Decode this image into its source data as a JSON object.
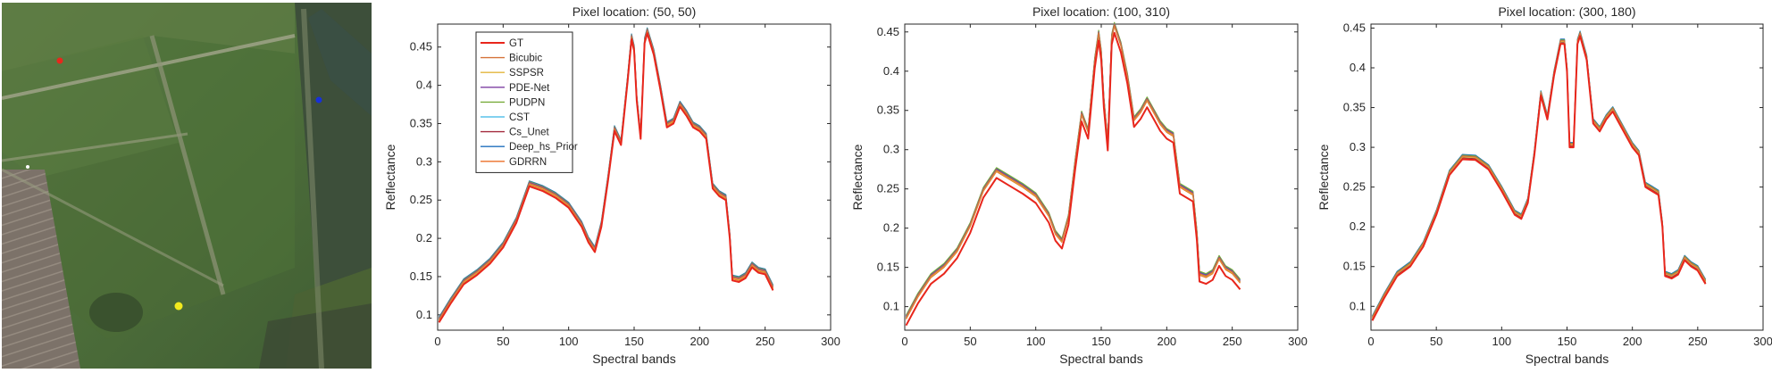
{
  "scene": {
    "markers": [
      {
        "name": "marker-red",
        "color": "#e8271c"
      },
      {
        "name": "marker-blue",
        "color": "#1730d8"
      },
      {
        "name": "marker-yellow",
        "color": "#f2ea1e"
      },
      {
        "name": "marker-white",
        "color": "#ffffff"
      }
    ]
  },
  "chart_data": [
    {
      "type": "line",
      "title": "Pixel location: (50, 50)",
      "xlabel": "Spectral bands",
      "ylabel": "Reflectance",
      "xlim": [
        0,
        300
      ],
      "ylim": [
        0.08,
        0.48
      ],
      "xticks": [
        0,
        50,
        100,
        150,
        200,
        250,
        300
      ],
      "yticks": [
        0.1,
        0.15,
        0.2,
        0.25,
        0.3,
        0.35,
        0.4,
        0.45
      ],
      "x": [
        1,
        10,
        20,
        30,
        40,
        50,
        60,
        70,
        80,
        90,
        100,
        110,
        115,
        120,
        125,
        130,
        135,
        140,
        145,
        148,
        150,
        152,
        155,
        158,
        160,
        165,
        170,
        175,
        180,
        185,
        190,
        195,
        200,
        205,
        210,
        215,
        220,
        223,
        225,
        230,
        235,
        240,
        245,
        250,
        256
      ],
      "base": [
        0.09,
        0.115,
        0.14,
        0.152,
        0.167,
        0.188,
        0.22,
        0.268,
        0.262,
        0.253,
        0.24,
        0.215,
        0.195,
        0.182,
        0.215,
        0.275,
        0.34,
        0.322,
        0.405,
        0.46,
        0.445,
        0.38,
        0.33,
        0.455,
        0.468,
        0.44,
        0.395,
        0.345,
        0.35,
        0.372,
        0.36,
        0.345,
        0.34,
        0.33,
        0.265,
        0.255,
        0.25,
        0.2,
        0.145,
        0.143,
        0.148,
        0.162,
        0.155,
        0.153,
        0.132
      ],
      "series": [
        {
          "name": "GT",
          "color": "#e8261c",
          "offset": 0.0
        },
        {
          "name": "Bicubic",
          "color": "#d5733a",
          "offset": 0.004
        },
        {
          "name": "SSPSR",
          "color": "#e3b53b",
          "offset": 0.003
        },
        {
          "name": "PDE-Net",
          "color": "#7e3fa3",
          "offset": 0.005
        },
        {
          "name": "PUDPN",
          "color": "#78ab3a",
          "offset": 0.006
        },
        {
          "name": "CST",
          "color": "#59c2ea",
          "offset": 0.004
        },
        {
          "name": "Cs_Unet",
          "color": "#a32a3e",
          "offset": 0.003
        },
        {
          "name": "Deep_hs_Prior",
          "color": "#1f6fbd",
          "offset": 0.007
        },
        {
          "name": "GDRRN",
          "color": "#ec6f27",
          "offset": 0.002
        }
      ],
      "legend": "top-left"
    },
    {
      "type": "line",
      "title": "Pixel location: (100, 310)",
      "xlabel": "Spectral bands",
      "ylabel": "Reflectance",
      "xlim": [
        0,
        300
      ],
      "ylim": [
        0.07,
        0.46
      ],
      "xticks": [
        0,
        50,
        100,
        150,
        200,
        250,
        300
      ],
      "yticks": [
        0.1,
        0.15,
        0.2,
        0.25,
        0.3,
        0.35,
        0.4,
        0.45
      ],
      "x": [
        1,
        10,
        20,
        30,
        40,
        50,
        60,
        70,
        80,
        90,
        100,
        110,
        115,
        120,
        125,
        130,
        135,
        140,
        145,
        148,
        150,
        152,
        155,
        158,
        160,
        165,
        170,
        175,
        180,
        185,
        190,
        195,
        200,
        205,
        210,
        215,
        220,
        223,
        225,
        230,
        235,
        240,
        245,
        250,
        256
      ],
      "base": [
        0.082,
        0.11,
        0.135,
        0.148,
        0.168,
        0.2,
        0.245,
        0.27,
        0.26,
        0.25,
        0.238,
        0.213,
        0.19,
        0.18,
        0.21,
        0.28,
        0.342,
        0.32,
        0.41,
        0.445,
        0.42,
        0.36,
        0.305,
        0.44,
        0.455,
        0.43,
        0.39,
        0.335,
        0.345,
        0.36,
        0.345,
        0.33,
        0.32,
        0.315,
        0.25,
        0.245,
        0.24,
        0.19,
        0.138,
        0.135,
        0.14,
        0.158,
        0.145,
        0.14,
        0.128
      ],
      "series": [
        {
          "name": "GT",
          "color": "#e8261c",
          "offset": -0.006
        },
        {
          "name": "Bicubic",
          "color": "#d5733a",
          "offset": 0.004
        },
        {
          "name": "SSPSR",
          "color": "#e3b53b",
          "offset": 0.003
        },
        {
          "name": "PDE-Net",
          "color": "#7e3fa3",
          "offset": 0.005
        },
        {
          "name": "PUDPN",
          "color": "#78ab3a",
          "offset": 0.007
        },
        {
          "name": "CST",
          "color": "#59c2ea",
          "offset": 0.004
        },
        {
          "name": "Cs_Unet",
          "color": "#a32a3e",
          "offset": 0.003
        },
        {
          "name": "Deep_hs_Prior",
          "color": "#1f6fbd",
          "offset": 0.006
        },
        {
          "name": "GDRRN",
          "color": "#ec6f27",
          "offset": 0.002
        }
      ]
    },
    {
      "type": "line",
      "title": "Pixel location: (300, 180)",
      "xlabel": "Spectral bands",
      "ylabel": "Reflectance",
      "xlim": [
        0,
        300
      ],
      "ylim": [
        0.07,
        0.455
      ],
      "xticks": [
        0,
        50,
        100,
        150,
        200,
        250,
        300
      ],
      "yticks": [
        0.1,
        0.15,
        0.2,
        0.25,
        0.3,
        0.35,
        0.4,
        0.45
      ],
      "x": [
        1,
        10,
        20,
        30,
        40,
        50,
        60,
        70,
        80,
        90,
        100,
        110,
        115,
        120,
        125,
        130,
        135,
        140,
        145,
        148,
        150,
        152,
        155,
        158,
        160,
        165,
        170,
        175,
        180,
        185,
        190,
        195,
        200,
        205,
        210,
        215,
        220,
        223,
        225,
        230,
        235,
        240,
        245,
        250,
        256
      ],
      "base": [
        0.082,
        0.11,
        0.138,
        0.15,
        0.175,
        0.215,
        0.265,
        0.285,
        0.284,
        0.272,
        0.245,
        0.215,
        0.21,
        0.23,
        0.29,
        0.365,
        0.335,
        0.39,
        0.43,
        0.43,
        0.395,
        0.3,
        0.3,
        0.43,
        0.44,
        0.41,
        0.33,
        0.32,
        0.335,
        0.345,
        0.33,
        0.315,
        0.3,
        0.29,
        0.25,
        0.245,
        0.24,
        0.2,
        0.138,
        0.135,
        0.14,
        0.158,
        0.15,
        0.145,
        0.128
      ],
      "series": [
        {
          "name": "GT",
          "color": "#e8261c",
          "offset": 0.0
        },
        {
          "name": "Bicubic",
          "color": "#d5733a",
          "offset": 0.004
        },
        {
          "name": "SSPSR",
          "color": "#e3b53b",
          "offset": 0.003
        },
        {
          "name": "PDE-Net",
          "color": "#7e3fa3",
          "offset": 0.004
        },
        {
          "name": "PUDPN",
          "color": "#78ab3a",
          "offset": 0.005
        },
        {
          "name": "CST",
          "color": "#59c2ea",
          "offset": 0.003
        },
        {
          "name": "Cs_Unet",
          "color": "#a32a3e",
          "offset": 0.002
        },
        {
          "name": "Deep_hs_Prior",
          "color": "#1f6fbd",
          "offset": 0.006
        },
        {
          "name": "GDRRN",
          "color": "#ec6f27",
          "offset": 0.001
        }
      ]
    }
  ]
}
